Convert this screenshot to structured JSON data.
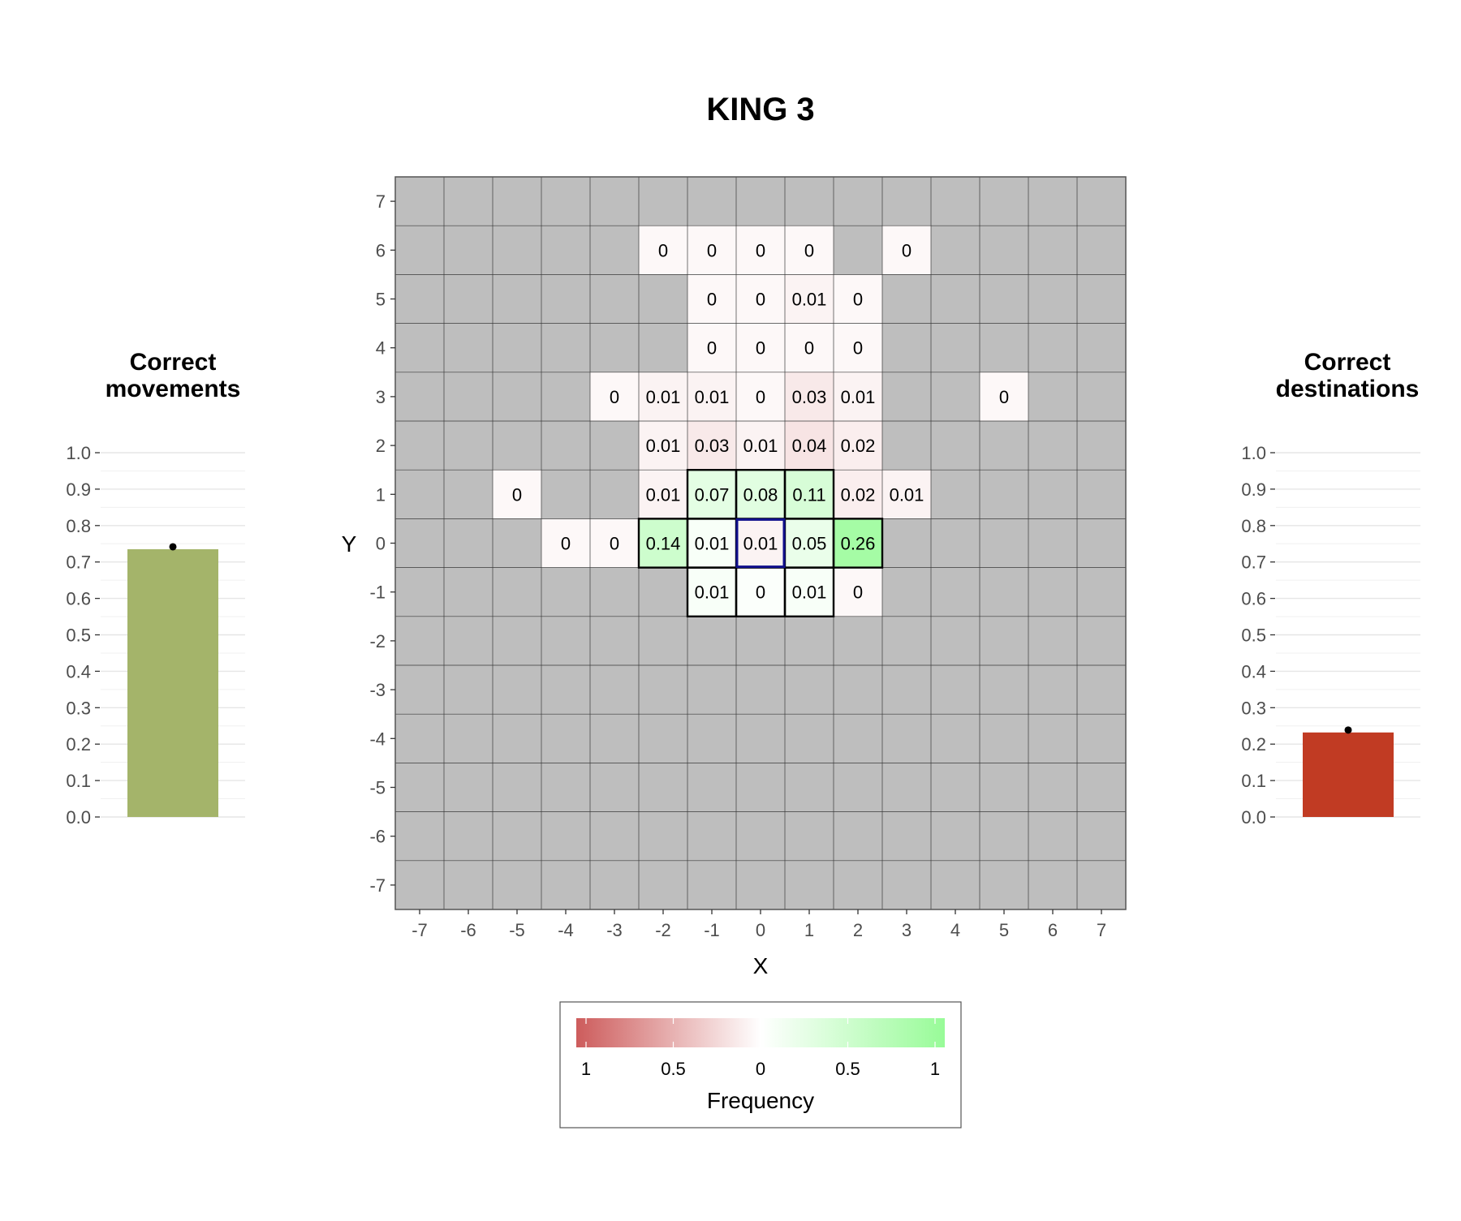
{
  "chart_data": [
    {
      "type": "heatmap",
      "title": "KING 3",
      "xlabel": "X",
      "ylabel": "Y",
      "x_ticks": [
        -7,
        -6,
        -5,
        -4,
        -3,
        -2,
        -1,
        0,
        1,
        2,
        3,
        4,
        5,
        6,
        7
      ],
      "y_ticks": [
        -7,
        -6,
        -5,
        -4,
        -3,
        -2,
        -1,
        0,
        1,
        2,
        3,
        4,
        5,
        6,
        7
      ],
      "xlim": [
        -7,
        7
      ],
      "ylim": [
        -7,
        7
      ],
      "background_color": "#bebebe",
      "origin": [
        0,
        0
      ],
      "correct_moves": [
        [
          -1,
          1
        ],
        [
          0,
          1
        ],
        [
          1,
          1
        ],
        [
          -2,
          0
        ],
        [
          -1,
          0
        ],
        [
          1,
          0
        ],
        [
          2,
          0
        ],
        [
          -1,
          -1
        ],
        [
          0,
          -1
        ],
        [
          1,
          -1
        ]
      ],
      "cells": [
        {
          "x": -2,
          "y": 6,
          "label": "0",
          "value": 0,
          "correct": false
        },
        {
          "x": -1,
          "y": 6,
          "label": "0",
          "value": 0,
          "correct": false
        },
        {
          "x": 0,
          "y": 6,
          "label": "0",
          "value": 0,
          "correct": false
        },
        {
          "x": 1,
          "y": 6,
          "label": "0",
          "value": 0,
          "correct": false
        },
        {
          "x": 3,
          "y": 6,
          "label": "0",
          "value": 0,
          "correct": false
        },
        {
          "x": -1,
          "y": 5,
          "label": "0",
          "value": 0,
          "correct": false
        },
        {
          "x": 0,
          "y": 5,
          "label": "0",
          "value": 0,
          "correct": false
        },
        {
          "x": 1,
          "y": 5,
          "label": "0.01",
          "value": 0.01,
          "correct": false
        },
        {
          "x": 2,
          "y": 5,
          "label": "0",
          "value": 0,
          "correct": false
        },
        {
          "x": -1,
          "y": 4,
          "label": "0",
          "value": 0,
          "correct": false
        },
        {
          "x": 0,
          "y": 4,
          "label": "0",
          "value": 0,
          "correct": false
        },
        {
          "x": 1,
          "y": 4,
          "label": "0",
          "value": 0,
          "correct": false
        },
        {
          "x": 2,
          "y": 4,
          "label": "0",
          "value": 0,
          "correct": false
        },
        {
          "x": -3,
          "y": 3,
          "label": "0",
          "value": 0,
          "correct": false
        },
        {
          "x": -2,
          "y": 3,
          "label": "0.01",
          "value": 0.01,
          "correct": false
        },
        {
          "x": -1,
          "y": 3,
          "label": "0.01",
          "value": 0.01,
          "correct": false
        },
        {
          "x": 0,
          "y": 3,
          "label": "0",
          "value": 0,
          "correct": false
        },
        {
          "x": 1,
          "y": 3,
          "label": "0.03",
          "value": 0.03,
          "correct": false
        },
        {
          "x": 2,
          "y": 3,
          "label": "0.01",
          "value": 0.01,
          "correct": false
        },
        {
          "x": 5,
          "y": 3,
          "label": "0",
          "value": 0,
          "correct": false
        },
        {
          "x": -2,
          "y": 2,
          "label": "0.01",
          "value": 0.01,
          "correct": false
        },
        {
          "x": -1,
          "y": 2,
          "label": "0.03",
          "value": 0.03,
          "correct": false
        },
        {
          "x": 0,
          "y": 2,
          "label": "0.01",
          "value": 0.01,
          "correct": false
        },
        {
          "x": 1,
          "y": 2,
          "label": "0.04",
          "value": 0.04,
          "correct": false
        },
        {
          "x": 2,
          "y": 2,
          "label": "0.02",
          "value": 0.02,
          "correct": false
        },
        {
          "x": -5,
          "y": 1,
          "label": "0",
          "value": 0,
          "correct": false
        },
        {
          "x": -2,
          "y": 1,
          "label": "0.01",
          "value": 0.01,
          "correct": false
        },
        {
          "x": -1,
          "y": 1,
          "label": "0.07",
          "value": 0.07,
          "correct": true
        },
        {
          "x": 0,
          "y": 1,
          "label": "0.08",
          "value": 0.08,
          "correct": true
        },
        {
          "x": 1,
          "y": 1,
          "label": "0.11",
          "value": 0.11,
          "correct": true
        },
        {
          "x": 2,
          "y": 1,
          "label": "0.02",
          "value": 0.02,
          "correct": false
        },
        {
          "x": 3,
          "y": 1,
          "label": "0.01",
          "value": 0.01,
          "correct": false
        },
        {
          "x": -4,
          "y": 0,
          "label": "0",
          "value": 0,
          "correct": false
        },
        {
          "x": -3,
          "y": 0,
          "label": "0",
          "value": 0,
          "correct": false
        },
        {
          "x": -2,
          "y": 0,
          "label": "0.14",
          "value": 0.14,
          "correct": true
        },
        {
          "x": -1,
          "y": 0,
          "label": "0.01",
          "value": 0.01,
          "correct": true
        },
        {
          "x": 0,
          "y": 0,
          "label": "0.01",
          "value": 0.01,
          "correct": false,
          "origin": true
        },
        {
          "x": 1,
          "y": 0,
          "label": "0.05",
          "value": 0.05,
          "correct": true
        },
        {
          "x": 2,
          "y": 0,
          "label": "0.26",
          "value": 0.26,
          "correct": true
        },
        {
          "x": -1,
          "y": -1,
          "label": "0.01",
          "value": 0.01,
          "correct": true
        },
        {
          "x": 0,
          "y": -1,
          "label": "0",
          "value": 0,
          "correct": true
        },
        {
          "x": 1,
          "y": -1,
          "label": "0.01",
          "value": 0.01,
          "correct": true
        },
        {
          "x": 2,
          "y": -1,
          "label": "0",
          "value": 0,
          "correct": false
        }
      ],
      "legend": {
        "title": "Frequency",
        "tick_labels": [
          "1",
          "0.5",
          "0",
          "0.5",
          "1"
        ],
        "colors": {
          "incorrect": "#cd5c5c",
          "zero": "#ffffff",
          "correct": "#98fb98"
        }
      }
    },
    {
      "type": "bar",
      "title_lines": [
        "Correct",
        "movements"
      ],
      "values": [
        0.735
      ],
      "ylim": [
        0,
        1
      ],
      "y_ticks": [
        "0.0",
        "0.1",
        "0.2",
        "0.3",
        "0.4",
        "0.5",
        "0.6",
        "0.7",
        "0.8",
        "0.9",
        "1.0"
      ],
      "color": "#a4b46a"
    },
    {
      "type": "bar",
      "title_lines": [
        "Correct",
        "destinations"
      ],
      "values": [
        0.232
      ],
      "ylim": [
        0,
        1
      ],
      "y_ticks": [
        "0.0",
        "0.1",
        "0.2",
        "0.3",
        "0.4",
        "0.5",
        "0.6",
        "0.7",
        "0.8",
        "0.9",
        "1.0"
      ],
      "color": "#c13b23"
    }
  ]
}
